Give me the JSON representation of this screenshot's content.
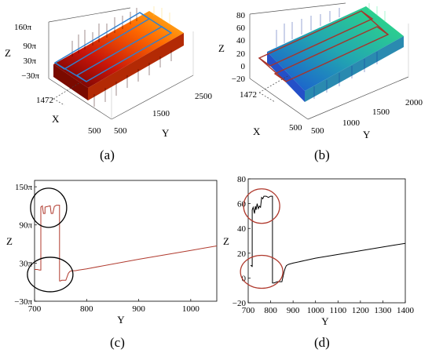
{
  "figure": {
    "panels": [
      {
        "id": "a",
        "caption": "(a)",
        "type": "surface3d",
        "z_label": "Z",
        "x_label": "X",
        "y_label": "Y",
        "z_ticks": [
          "160π",
          "90π",
          "30π",
          "−30π"
        ],
        "x_ticks": [
          "1472",
          "500"
        ],
        "y_ticks": [
          "500",
          "1500",
          "2500"
        ],
        "colormap": "hot",
        "highlight_color": "#2f80d0"
      },
      {
        "id": "b",
        "caption": "(b)",
        "type": "surface3d",
        "z_label": "Z",
        "x_label": "X",
        "y_label": "Y",
        "z_ticks": [
          "80",
          "60",
          "40",
          "20",
          "0",
          "−20"
        ],
        "x_ticks": [
          "1472",
          "500"
        ],
        "y_ticks": [
          "500",
          "1000",
          "1500",
          "2000"
        ],
        "colormap": "winter",
        "highlight_color": "#a8332a"
      }
    ]
  },
  "chart_data": [
    {
      "type": "line",
      "panel": "c",
      "caption": "(c)",
      "xlabel": "Y",
      "ylabel": "Z",
      "xlim": [
        700,
        1050
      ],
      "ylim": [
        -30,
        160
      ],
      "x_ticks": [
        700,
        800,
        900,
        1000
      ],
      "y_ticks": [
        {
          "value": -30,
          "label": "−30π"
        },
        {
          "value": 30,
          "label": "30π"
        },
        {
          "value": 90,
          "label": "90π"
        },
        {
          "value": 150,
          "label": "150π"
        }
      ],
      "series_color": "#b03a2e",
      "series": [
        {
          "x": [
            700,
            705,
            710,
            712,
            712,
            715,
            717,
            720,
            720,
            730,
            732,
            735,
            738,
            740,
            742,
            745,
            748,
            748,
            750,
            752,
            755,
            760,
            765,
            768,
            772,
            778,
            785,
            800,
            900,
            1000,
            1050
          ],
          "y": [
            20,
            20,
            19,
            19,
            118,
            120,
            108,
            108,
            118,
            120,
            108,
            108,
            119,
            120,
            121,
            121,
            121,
            2,
            2,
            3,
            3,
            3,
            14,
            17,
            18,
            18,
            19,
            21,
            36,
            50,
            57
          ]
        }
      ],
      "annotations": [
        {
          "shape": "ellipse",
          "around": "upper-step"
        },
        {
          "shape": "ellipse",
          "around": "lower-step"
        }
      ]
    },
    {
      "type": "line",
      "panel": "d",
      "caption": "(d)",
      "xlabel": "Y",
      "ylabel": "Z",
      "xlim": [
        700,
        1400
      ],
      "ylim": [
        -20,
        80
      ],
      "x_ticks": [
        700,
        800,
        900,
        1000,
        1100,
        1200,
        1300,
        1400
      ],
      "y_ticks": [
        {
          "value": -20,
          "label": "−20"
        },
        {
          "value": 0,
          "label": "0"
        },
        {
          "value": 20,
          "label": "20"
        },
        {
          "value": 40,
          "label": "40"
        },
        {
          "value": 60,
          "label": "60"
        },
        {
          "value": 80,
          "label": "80"
        }
      ],
      "series_color": "#000000",
      "series": [
        {
          "x": [
            710,
            715,
            718,
            718,
            722,
            728,
            732,
            735,
            740,
            745,
            750,
            755,
            760,
            765,
            770,
            780,
            790,
            800,
            805,
            808,
            808,
            815,
            830,
            845,
            850,
            855,
            860,
            865,
            870,
            880,
            900,
            950,
            1000,
            1050,
            1100,
            1150,
            1200,
            1250,
            1300,
            1350,
            1400
          ],
          "y": [
            10,
            10,
            9,
            55,
            57,
            52,
            58,
            55,
            60,
            56,
            58,
            57,
            65,
            64,
            66,
            66,
            65,
            66,
            66,
            66,
            -4,
            -4,
            -3,
            -3,
            -3,
            1,
            5,
            8,
            10,
            11,
            12,
            14,
            16,
            17.5,
            19,
            20.5,
            22,
            23.5,
            25,
            26.5,
            28
          ]
        }
      ],
      "annotations": [
        {
          "shape": "ellipse",
          "around": "upper-step"
        },
        {
          "shape": "ellipse",
          "around": "lower-step"
        }
      ]
    }
  ]
}
